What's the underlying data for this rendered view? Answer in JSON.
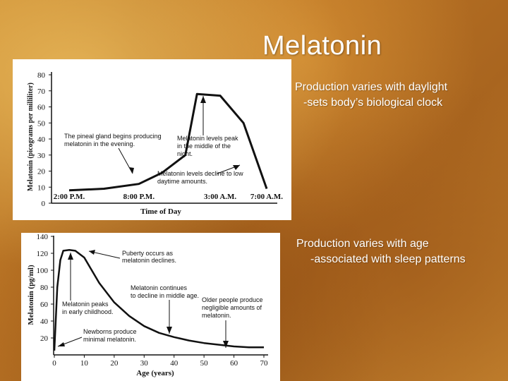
{
  "slide": {
    "title": "Melatonin",
    "text1": {
      "line1": "Production varies with daylight",
      "line2": "-sets body’s biological clock"
    },
    "text2": {
      "line1": "Production varies with age",
      "line2": "-associated with sleep patterns"
    }
  },
  "colors": {
    "background": "#b87224",
    "text": "#ffffff",
    "panel": "#ffffff",
    "ink": "#111111"
  },
  "chart_data": [
    {
      "type": "line",
      "title": "",
      "xlabel": "Time of Day",
      "ylabel": "Melatonin (picograms per milliliter)",
      "x_tick_labels": [
        "2:00 P.M.",
        "8:00 P.M.",
        "3:00 A.M.",
        "7:00 A.M."
      ],
      "y_ticks": [
        0,
        10,
        20,
        30,
        40,
        50,
        60,
        70,
        80
      ],
      "ylim": [
        0,
        80
      ],
      "series": [
        {
          "x": [
            "2:00 P.M.",
            "5:00 P.M.",
            "8:00 P.M.",
            "10:00 P.M.",
            "12:00 A.M.",
            "1:00 A.M.",
            "3:00 A.M.",
            "5:00 A.M.",
            "7:00 A.M."
          ],
          "values": [
            8,
            9,
            12,
            19,
            30,
            68,
            67,
            50,
            9
          ]
        }
      ],
      "annotations": [
        "The pineal gland begins producing melatonin in the evening.",
        "Melatonin levels peak in the middle of the night.",
        "Melatonin levels decline to low daytime amounts."
      ],
      "grid": false
    },
    {
      "type": "line",
      "title": "",
      "xlabel": "Age (years)",
      "ylabel": "Melatonin (pg/ml)",
      "x_ticks": [
        0,
        10,
        20,
        30,
        40,
        50,
        60,
        70
      ],
      "y_ticks": [
        20,
        40,
        60,
        80,
        100,
        120,
        140
      ],
      "xlim": [
        0,
        73
      ],
      "ylim": [
        0,
        140
      ],
      "series": [
        {
          "x": [
            0,
            1,
            2,
            3,
            5,
            7,
            10,
            15,
            20,
            25,
            30,
            35,
            40,
            45,
            50,
            55,
            60,
            65,
            70
          ],
          "values": [
            5,
            80,
            112,
            123,
            124,
            123,
            115,
            85,
            62,
            46,
            34,
            26,
            21,
            17,
            14,
            12,
            10,
            9,
            9
          ]
        }
      ],
      "annotations": [
        "Puberty occurs as melatonin declines.",
        "Melatonin continues to decline in middle age.",
        "Older people produce negligible amounts of melatonin.",
        "Melatonin peaks in early childhood.",
        "Newborns produce minimal melatonin."
      ],
      "grid": false
    }
  ]
}
